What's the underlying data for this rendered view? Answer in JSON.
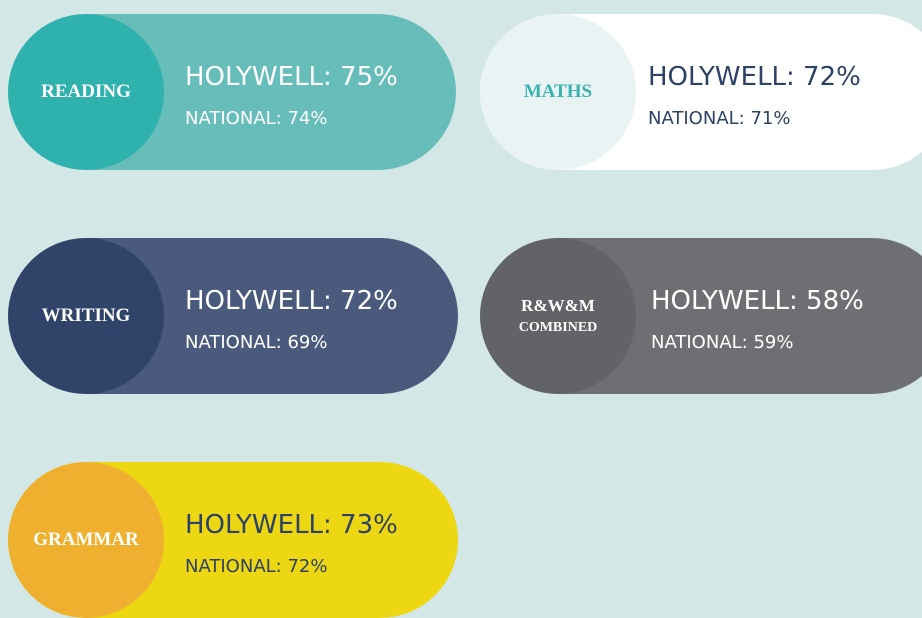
{
  "cards": [
    {
      "subject": [
        "READING"
      ],
      "school": "HOLYWELL: 75%",
      "national": "NATIONAL: 74%"
    },
    {
      "subject": [
        "MATHS"
      ],
      "school": "HOLYWELL: 72%",
      "national": "NATIONAL: 71%"
    },
    {
      "subject": [
        "WRITING"
      ],
      "school": "HOLYWELL: 72%",
      "national": "NATIONAL: 69%"
    },
    {
      "subject": [
        "R&W&M",
        "COMBINED"
      ],
      "school": "HOLYWELL: 58%",
      "national": "NATIONAL: 59%"
    },
    {
      "subject": [
        "GRAMMAR"
      ],
      "school": "HOLYWELL: 73%",
      "national": "NATIONAL: 72%"
    }
  ]
}
